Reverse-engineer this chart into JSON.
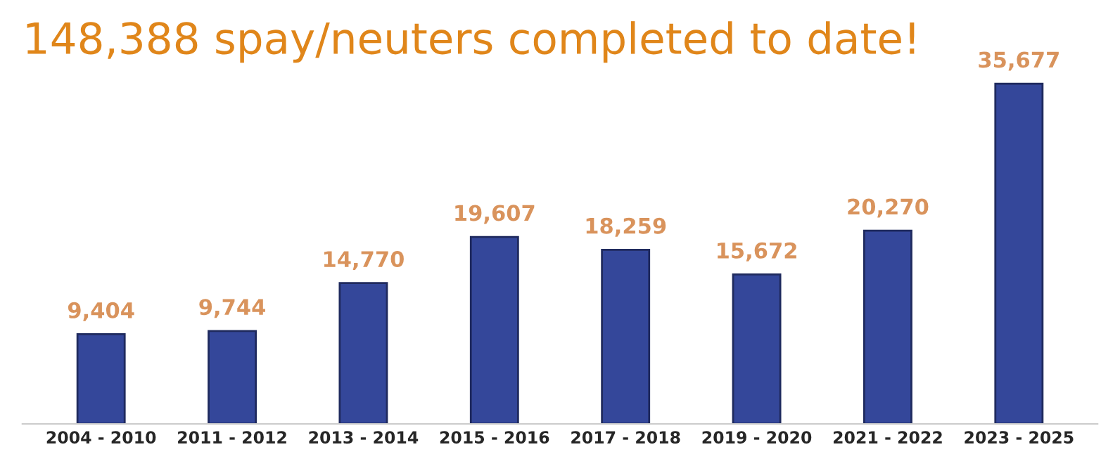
{
  "chart_data": {
    "type": "bar",
    "title": "148,388 spay/neuters completed to date!",
    "categories": [
      "2004 - 2010",
      "2011 - 2012",
      "2013 - 2014",
      "2015 - 2016",
      "2017 - 2018",
      "2019 - 2020",
      "2021 - 2022",
      "2023 - 2025"
    ],
    "values": [
      9404,
      9744,
      14770,
      19607,
      18259,
      15672,
      20270,
      35677
    ],
    "value_labels": [
      "9,404",
      "9,744",
      "14,770",
      "19,607",
      "18,259",
      "15,672",
      "20,270",
      "35,677"
    ],
    "color": "#34479a",
    "tick_labels": "x",
    "grid": false
  }
}
